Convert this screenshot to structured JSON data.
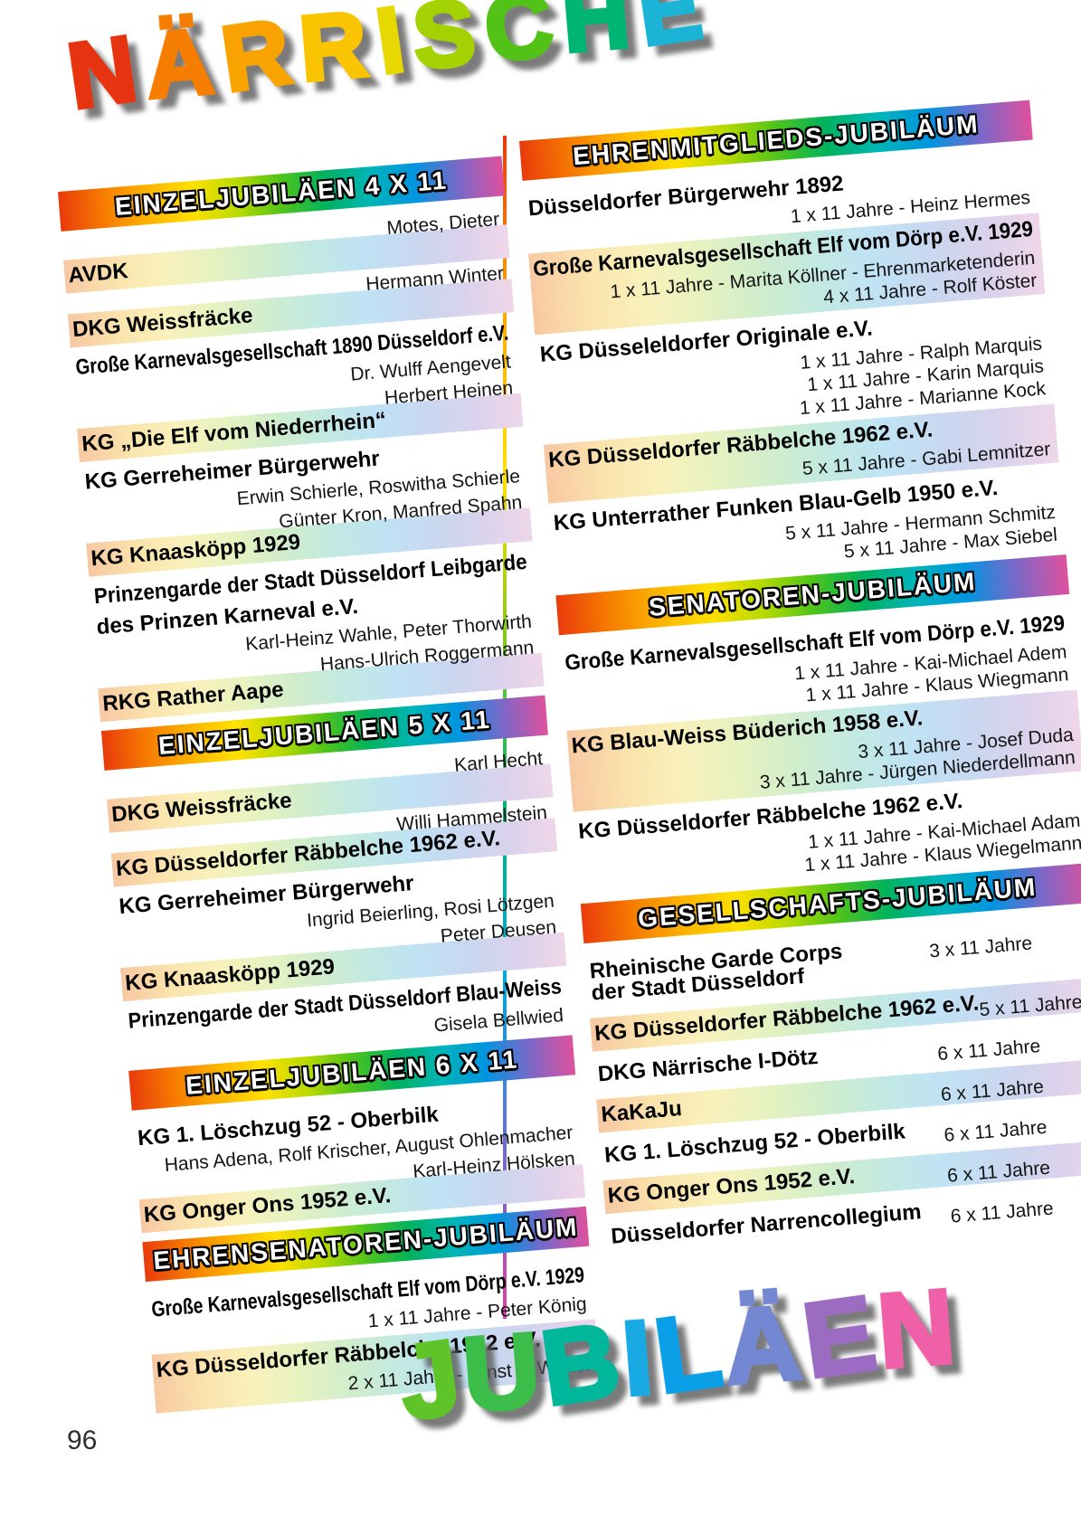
{
  "page": {
    "number": "96"
  },
  "titles": {
    "top": {
      "text": "NÄRRISCHE",
      "letters": [
        {
          "ch": "N",
          "color": "#e73410"
        },
        {
          "ch": "Ä",
          "color": "#f57d00"
        },
        {
          "ch": "R",
          "color": "#f8a300"
        },
        {
          "ch": "R",
          "color": "#fbc400"
        },
        {
          "ch": "I",
          "color": "#e6d800"
        },
        {
          "ch": "S",
          "color": "#a3d200"
        },
        {
          "ch": "C",
          "color": "#52c316"
        },
        {
          "ch": "H",
          "color": "#00b574"
        },
        {
          "ch": "E",
          "color": "#1cb4d6"
        }
      ]
    },
    "bottom": {
      "text": "JUBILÄEN",
      "letters": [
        {
          "ch": "J",
          "color": "#5fc428"
        },
        {
          "ch": "U",
          "color": "#3dbe4a"
        },
        {
          "ch": "B",
          "color": "#00b79b"
        },
        {
          "ch": "I",
          "color": "#19aae4"
        },
        {
          "ch": "L",
          "color": "#0b9fe8"
        },
        {
          "ch": "Ä",
          "color": "#7387d2"
        },
        {
          "ch": "E",
          "color": "#9c6cc2"
        },
        {
          "ch": "N",
          "color": "#f060a8"
        }
      ]
    }
  },
  "columns": [
    {
      "id": "left",
      "sections": [
        {
          "header": "EINZELJUBILÄEN 4 X 11",
          "layout": "persons",
          "entries": [
            {
              "club": "AVDK",
              "persons": [
                "Motes, Dieter"
              ],
              "band": true,
              "ppos": "above"
            },
            {
              "club": "DKG Weissfräcke",
              "persons": [
                "Hermann Winter"
              ],
              "band": true,
              "ppos": "above"
            },
            {
              "club": "Große Karnevalsgesellschaft 1890 Düsseldorf e.V.",
              "persons": [
                "Dr. Wulff Aengevelt"
              ],
              "band": false,
              "ppos": "below"
            },
            {
              "club": "KG „Die Elf vom Niederrhein“",
              "persons": [
                "Herbert Heinen"
              ],
              "band": true,
              "ppos": "above"
            },
            {
              "club": "KG Gerreheimer Bürgerwehr",
              "persons": [
                "Erwin Schierle, Roswitha Schierle"
              ],
              "band": false,
              "ppos": "below"
            },
            {
              "club": "KG Knaasköpp 1929",
              "persons": [
                "Günter Kron, Manfred Spahn"
              ],
              "band": true,
              "ppos": "above"
            },
            {
              "club": "Prinzengarde der Stadt Düsseldorf Leibgarde",
              "club2": "des Prinzen Karneval e.V.",
              "persons": [
                "Karl-Heinz Wahle, Peter Thorwirth"
              ],
              "band": false,
              "ppos": "below"
            },
            {
              "club": "RKG Rather Aape",
              "persons": [
                "Hans-Ulrich Roggermann"
              ],
              "band": true,
              "ppos": "above"
            }
          ]
        },
        {
          "header": "EINZELJUBILÄEN 5 X 11",
          "layout": "persons",
          "entries": [
            {
              "club": "DKG Weissfräcke",
              "persons": [
                "Karl Hecht"
              ],
              "band": true,
              "ppos": "above"
            },
            {
              "club": "KG Düsseldorfer Räbbelche 1962 e.V.",
              "persons": [
                "Willi Hammelstein"
              ],
              "band": true,
              "ppos": "above"
            },
            {
              "club": "KG Gerreheimer Bürgerwehr",
              "persons": [
                "Ingrid Beierling, Rosi Lötzgen"
              ],
              "band": false,
              "ppos": "below"
            },
            {
              "club": "KG Knaasköpp 1929",
              "persons": [
                "Peter Deusen"
              ],
              "band": true,
              "ppos": "above"
            },
            {
              "club": "Prinzengarde der Stadt Düsseldorf Blau-Weiss",
              "persons": [
                "Gisela Bellwied"
              ],
              "band": false,
              "ppos": "below"
            }
          ]
        },
        {
          "header": "EINZELJUBILÄEN 6 X 11",
          "layout": "persons",
          "entries": [
            {
              "club": "KG 1. Löschzug 52 - Oberbilk",
              "persons": [
                "Hans Adena, Rolf Krischer, August Ohlenmacher"
              ],
              "band": false,
              "ppos": "below"
            },
            {
              "club": "KG Onger Ons 1952 e.V.",
              "persons": [
                "Karl-Heinz Hölsken"
              ],
              "band": true,
              "ppos": "above"
            }
          ]
        },
        {
          "header": "EHRENSENATOREN-JUBILÄUM",
          "layout": "persons",
          "entries": [
            {
              "club": "Große Karnevalsgesellschaft Elf vom Dörp e.V. 1929",
              "persons": [
                "1 x 11 Jahre - Peter König"
              ],
              "band": false,
              "ppos": "below"
            },
            {
              "club": "KG Düsseldorfer Räbbelche 1962 e.V.",
              "persons": [
                "2 x 11 Jahre - Ernst F. Wolter"
              ],
              "band": true,
              "ppos": "below"
            }
          ]
        }
      ]
    },
    {
      "id": "right",
      "sections": [
        {
          "header": "EHRENMITGLIEDS-JUBILÄUM",
          "layout": "persons",
          "entries": [
            {
              "club": "Düsseldorfer Bürgerwehr 1892",
              "persons": [
                "1 x 11 Jahre - Heinz Hermes"
              ],
              "band": false,
              "ppos": "below"
            },
            {
              "club": "Große Karnevalsgesellschaft Elf vom Dörp e.V. 1929",
              "persons": [
                "1 x 11 Jahre - Marita Köllner - Ehrenmarketenderin",
                "4 x 11 Jahre - Rolf Köster"
              ],
              "band": true,
              "ppos": "below"
            },
            {
              "club": "KG Düsseleldorfer Originale e.V.",
              "persons": [
                "1 x 11 Jahre - Ralph Marquis",
                "1 x 11 Jahre - Karin Marquis",
                "1 x 11 Jahre - Marianne Kock"
              ],
              "band": false,
              "ppos": "below"
            },
            {
              "club": "KG Düsseldorfer Räbbelche 1962 e.V.",
              "persons": [
                "5 x 11 Jahre - Gabi Lemnitzer"
              ],
              "band": true,
              "ppos": "below"
            },
            {
              "club": "KG Unterrather Funken Blau-Gelb 1950 e.V.",
              "persons": [
                "5 x 11 Jahre - Hermann Schmitz",
                "5 x 11 Jahre - Max Siebel"
              ],
              "band": false,
              "ppos": "below"
            }
          ]
        },
        {
          "header": "SENATOREN-JUBILÄUM",
          "layout": "persons",
          "entries": [
            {
              "club": "Große Karnevalsgesellschaft Elf vom Dörp e.V. 1929",
              "persons": [
                "1 x 11 Jahre - Kai-Michael Adem",
                "1 x 11 Jahre - Klaus Wiegmann"
              ],
              "band": false,
              "ppos": "below"
            },
            {
              "club": "KG Blau-Weiss Büderich 1958 e.V.",
              "persons": [
                "3 x 11 Jahre - Josef Duda",
                "3 x 11 Jahre - Jürgen Niederdellmann"
              ],
              "band": true,
              "ppos": "below"
            },
            {
              "club": "KG Düsseldorfer Räbbelche 1962 e.V.",
              "persons": [
                "1 x 11 Jahre - Kai-Michael Adam",
                "1 x 11 Jahre - Klaus Wiegelmann"
              ],
              "band": false,
              "ppos": "below"
            }
          ]
        },
        {
          "header": "GESELLSCHAFTS-JUBILÄUM",
          "layout": "inline-years",
          "entries": [
            {
              "club": "Rheinische Garde Corps",
              "club2": "der Stadt Düsseldorf",
              "years": "3 x 11 Jahre",
              "band": false
            },
            {
              "club": "KG Düsseldorfer Räbbelche 1962 e.V.",
              "years": "5 x 11 Jahre",
              "band": true
            },
            {
              "club": "DKG Närrische I-Dötz",
              "years": "6 x 11 Jahre",
              "band": false
            },
            {
              "club": "KaKaJu",
              "years": "6 x 11 Jahre",
              "band": true
            },
            {
              "club": "KG 1. Löschzug 52 - Oberbilk",
              "years": "6 x 11 Jahre",
              "band": false
            },
            {
              "club": "KG Onger Ons 1952 e.V.",
              "years": "6 x 11 Jahre",
              "band": true
            },
            {
              "club": "Düsseldorfer Narrencollegium",
              "years": "6 x 11 Jahre",
              "band": false
            }
          ]
        }
      ]
    }
  ],
  "colors": {
    "header_gradient": [
      "#e93b0c",
      "#f67c00",
      "#fcb400",
      "#ffe000",
      "#b8da00",
      "#50c41a",
      "#00b25e",
      "#00b5b8",
      "#0095e0",
      "#7a68c8",
      "#df519e"
    ],
    "band_gradient": [
      "#f7c8a2",
      "#fbe3ac",
      "#f9f1bc",
      "#e6f2c0",
      "#d0edcc",
      "#c2e9e2",
      "#bfe3f4",
      "#c8d8f0",
      "#d9d2ec",
      "#efd6e9"
    ],
    "divider_gradient": [
      "#e8380d",
      "#f9a700",
      "#ffe000",
      "#7ec81c",
      "#00b07a",
      "#00a7d8",
      "#6e6bc8",
      "#d5459f"
    ],
    "title_shadow": "rgba(90,90,90,0.8)"
  }
}
